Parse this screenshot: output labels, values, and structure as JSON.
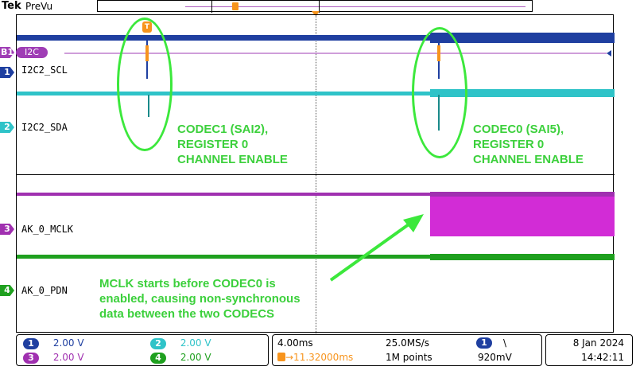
{
  "brand": "Tek",
  "mode": "PreVu",
  "channels": {
    "b1": {
      "marker": "B1",
      "tag": "I2C"
    },
    "ch1": {
      "marker": "1",
      "name": "I2C2_SCL",
      "color": "#1f3fa0"
    },
    "ch2": {
      "marker": "2",
      "name": "I2C2_SDA",
      "color": "#2fc3c8"
    },
    "ch3": {
      "marker": "3",
      "name": "AK_0_MCLK",
      "color": "#a030b0"
    },
    "ch4": {
      "marker": "4",
      "name": "AK_0_PDN",
      "color": "#1fa01f"
    }
  },
  "annotations": {
    "codec1": [
      "CODEC1 (SAI2),",
      "REGISTER 0",
      "CHANNEL ENABLE"
    ],
    "codec0": [
      "CODEC0 (SAI5),",
      "REGISTER 0",
      "CHANNEL ENABLE"
    ],
    "mclk": [
      "MCLK starts before CODEC0 is",
      "enabled, causing non-synchronous",
      "data between the two CODECS"
    ]
  },
  "status": {
    "ch1_scale": "2.00 V",
    "ch2_scale": "2.00 V",
    "ch3_scale": "2.00 V",
    "ch4_scale": "2.00 V",
    "timebase": "4.00ms",
    "trigger_pos": "→11.32000ms",
    "sample_rate": "25.0MS/s",
    "record_length": "1M points",
    "trigger_source": "1",
    "trigger_slope": "\\",
    "trigger_level": "920mV",
    "date": "8 Jan  2024",
    "time": "14:42:11"
  }
}
